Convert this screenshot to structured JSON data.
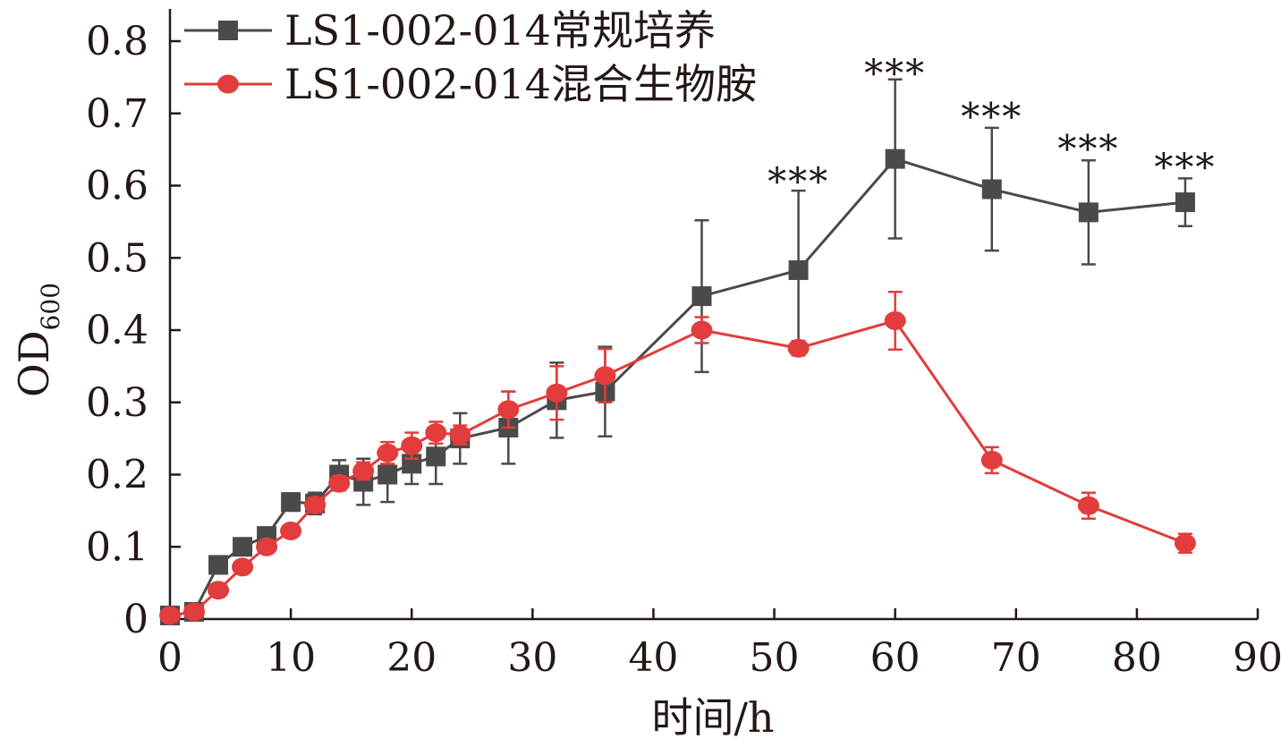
{
  "chart_data": {
    "type": "line",
    "xlabel": "时间/h",
    "ylabel": "OD",
    "ylabel_subscript": "600",
    "xlim": [
      0,
      90
    ],
    "ylim": [
      0,
      0.85
    ],
    "x_ticks": [
      0,
      10,
      20,
      30,
      40,
      50,
      60,
      70,
      80,
      90
    ],
    "y_ticks": [
      0,
      0.1,
      0.2,
      0.3,
      0.4,
      0.5,
      0.6,
      0.7,
      0.8
    ],
    "x_tick_labels": [
      "0",
      "10",
      "20",
      "30",
      "40",
      "50",
      "60",
      "70",
      "80",
      "90"
    ],
    "y_tick_labels": [
      "0",
      "0.1",
      "0.2",
      "0.3",
      "0.4",
      "0.5",
      "0.6",
      "0.7",
      "0.8"
    ],
    "grid": false,
    "legend_position": "top-left",
    "series": [
      {
        "name": "LS1-002-014常规培养",
        "color": "#4a4a4a",
        "marker": "square",
        "x": [
          0,
          2,
          4,
          6,
          8,
          10,
          12,
          14,
          16,
          18,
          20,
          22,
          24,
          28,
          32,
          36,
          44,
          52,
          60,
          68,
          76,
          84
        ],
        "y": [
          0.005,
          0.01,
          0.075,
          0.1,
          0.115,
          0.162,
          0.16,
          0.2,
          0.19,
          0.2,
          0.215,
          0.225,
          0.25,
          0.265,
          0.303,
          0.315,
          0.447,
          0.483,
          0.637,
          0.595,
          0.563,
          0.577
        ],
        "err": [
          0.002,
          0.003,
          0.005,
          0.005,
          0.006,
          0.012,
          0.015,
          0.02,
          0.032,
          0.038,
          0.028,
          0.038,
          0.035,
          0.05,
          0.052,
          0.062,
          0.105,
          0.11,
          0.11,
          0.085,
          0.072,
          0.033
        ]
      },
      {
        "name": "LS1-002-014混合生物胺",
        "color": "#e23c3c",
        "marker": "circle",
        "x": [
          0,
          2,
          4,
          6,
          8,
          10,
          12,
          14,
          16,
          18,
          20,
          22,
          24,
          28,
          32,
          36,
          44,
          52,
          60,
          68,
          76,
          84
        ],
        "y": [
          0.005,
          0.01,
          0.04,
          0.072,
          0.1,
          0.122,
          0.158,
          0.188,
          0.205,
          0.23,
          0.24,
          0.258,
          0.255,
          0.29,
          0.313,
          0.337,
          0.4,
          0.375,
          0.413,
          0.22,
          0.157,
          0.105
        ],
        "err": [
          0.002,
          0.003,
          0.005,
          0.006,
          0.008,
          0.006,
          0.01,
          0.01,
          0.012,
          0.015,
          0.018,
          0.015,
          0.013,
          0.025,
          0.037,
          0.037,
          0.018,
          0.01,
          0.04,
          0.018,
          0.018,
          0.013
        ]
      }
    ],
    "annotations": [
      {
        "x": 52,
        "y": 0.6,
        "text": "***"
      },
      {
        "x": 60,
        "y": 0.75,
        "text": "***"
      },
      {
        "x": 68,
        "y": 0.69,
        "text": "***"
      },
      {
        "x": 76,
        "y": 0.645,
        "text": "***"
      },
      {
        "x": 84,
        "y": 0.62,
        "text": "***"
      }
    ]
  }
}
